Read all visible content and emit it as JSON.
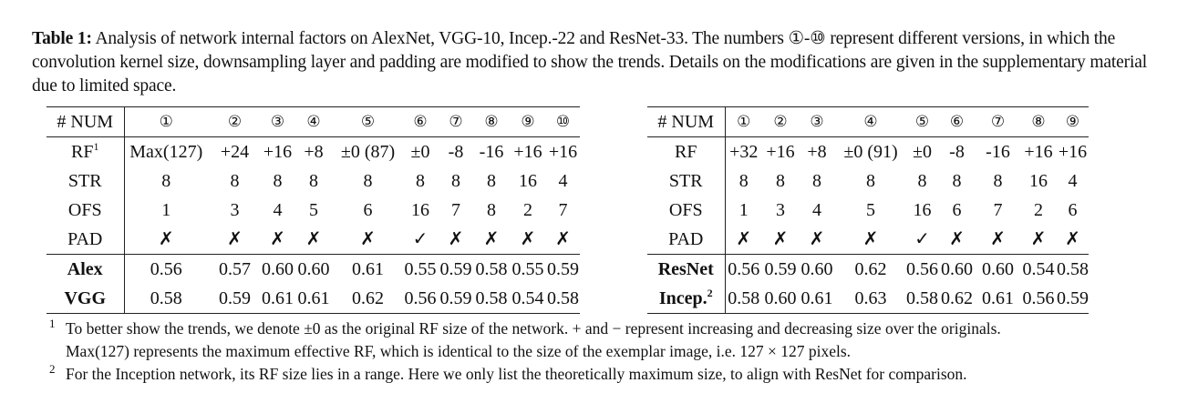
{
  "caption": {
    "label": "Table 1:",
    "text": "Analysis of network internal factors on AlexNet, VGG-10, Incep.-22 and ResNet-33. The numbers ①-⑩ represent different versions, in which the convolution kernel size, downsampling layer and padding are modified to show the trends. Details on the modifications are given in the supplementary material due to limited space."
  },
  "left_table": {
    "header_label": "# NUM",
    "columns": [
      "①",
      "②",
      "③",
      "④",
      "⑤",
      "⑥",
      "⑦",
      "⑧",
      "⑨",
      "⑩"
    ],
    "rows": [
      {
        "label": "RF",
        "label_sup": "1",
        "cells": [
          "Max(127)",
          "+24",
          "+16",
          "+8",
          "±0 (87)",
          "±0",
          "-8",
          "-16",
          "+16",
          "+16"
        ]
      },
      {
        "label": "STR",
        "cells": [
          "8",
          "8",
          "8",
          "8",
          "8",
          "8",
          "8",
          "8",
          "16",
          "4"
        ]
      },
      {
        "label": "OFS",
        "cells": [
          "1",
          "3",
          "4",
          "5",
          "6",
          "16",
          "7",
          "8",
          "2",
          "7"
        ]
      },
      {
        "label": "PAD",
        "cells": [
          "✗",
          "✗",
          "✗",
          "✗",
          "✗",
          "✓",
          "✗",
          "✗",
          "✗",
          "✗"
        ]
      },
      {
        "label": "Alex",
        "cells": [
          "0.56",
          "0.57",
          "0.60",
          "0.60",
          "0.61",
          "0.55",
          "0.59",
          "0.58",
          "0.55",
          "0.59"
        ]
      },
      {
        "label": "VGG",
        "cells": [
          "0.58",
          "0.59",
          "0.61",
          "0.61",
          "0.62",
          "0.56",
          "0.59",
          "0.58",
          "0.54",
          "0.58"
        ]
      }
    ]
  },
  "right_table": {
    "header_label": "# NUM",
    "columns": [
      "①",
      "②",
      "③",
      "④",
      "⑤",
      "⑥",
      "⑦",
      "⑧",
      "⑨"
    ],
    "rows": [
      {
        "label": "RF",
        "cells": [
          "+32",
          "+16",
          "+8",
          "±0 (91)",
          "±0",
          "-8",
          "-16",
          "+16",
          "+16"
        ]
      },
      {
        "label": "STR",
        "cells": [
          "8",
          "8",
          "8",
          "8",
          "8",
          "8",
          "8",
          "16",
          "4"
        ]
      },
      {
        "label": "OFS",
        "cells": [
          "1",
          "3",
          "4",
          "5",
          "16",
          "6",
          "7",
          "2",
          "6"
        ]
      },
      {
        "label": "PAD",
        "cells": [
          "✗",
          "✗",
          "✗",
          "✗",
          "✓",
          "✗",
          "✗",
          "✗",
          "✗"
        ]
      },
      {
        "label": "ResNet",
        "cells": [
          "0.56",
          "0.59",
          "0.60",
          "0.62",
          "0.56",
          "0.60",
          "0.60",
          "0.54",
          "0.58"
        ]
      },
      {
        "label": "Incep.",
        "label_sup": "2",
        "cells": [
          "0.58",
          "0.60",
          "0.61",
          "0.63",
          "0.58",
          "0.62",
          "0.61",
          "0.56",
          "0.59"
        ]
      }
    ]
  },
  "footnotes": [
    {
      "marker": "1",
      "lines": [
        "To better show the trends, we denote ±0 as the original RF size of the network. + and − represent increasing and decreasing size over the originals.",
        "Max(127) represents the maximum effective RF, which is identical to the size of the exemplar image, i.e. 127 × 127 pixels."
      ]
    },
    {
      "marker": "2",
      "lines": [
        "For the Inception network, its RF size lies in a range. Here we only list the theoretically maximum size, to align with ResNet for comparison."
      ]
    }
  ]
}
